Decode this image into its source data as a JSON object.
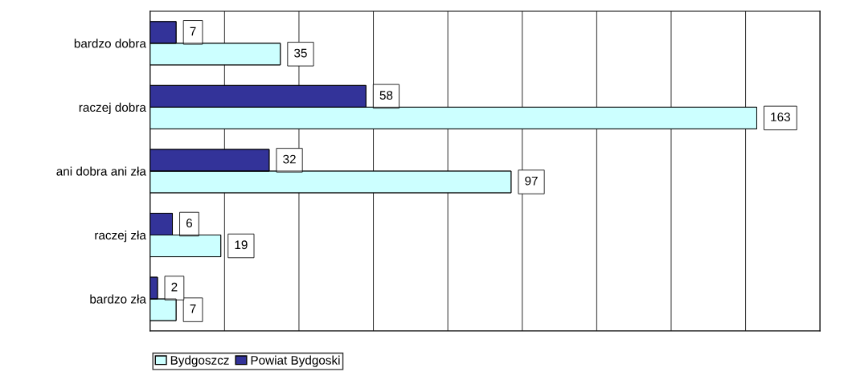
{
  "chart_data": {
    "type": "bar",
    "orientation": "horizontal",
    "categories": [
      "bardzo dobra",
      "raczej dobra",
      "ani dobra ani zła",
      "raczej zła",
      "bardzo zła"
    ],
    "series": [
      {
        "name": "Bydgoszcz",
        "color": "#ccffff",
        "values": [
          35,
          163,
          97,
          19,
          7
        ]
      },
      {
        "name": "Powiat Bydgoski",
        "color": "#333399",
        "values": [
          7,
          58,
          32,
          6,
          2
        ]
      }
    ],
    "data_labels": true,
    "xlim": [
      0,
      180
    ],
    "xticks": [
      {
        "value": 0,
        "label": null
      },
      {
        "value": 20,
        "label": null
      },
      {
        "value": 40,
        "label": null
      },
      {
        "value": 60,
        "label": null
      },
      {
        "value": 80,
        "label": null
      },
      {
        "value": 100,
        "label": null
      },
      {
        "value": 120,
        "label": null
      },
      {
        "value": 140,
        "label": null
      },
      {
        "value": 160,
        "label": null
      },
      {
        "value": 180,
        "label": null
      }
    ],
    "tick_labels": "y",
    "grid": "x",
    "legend": "bottom left"
  }
}
